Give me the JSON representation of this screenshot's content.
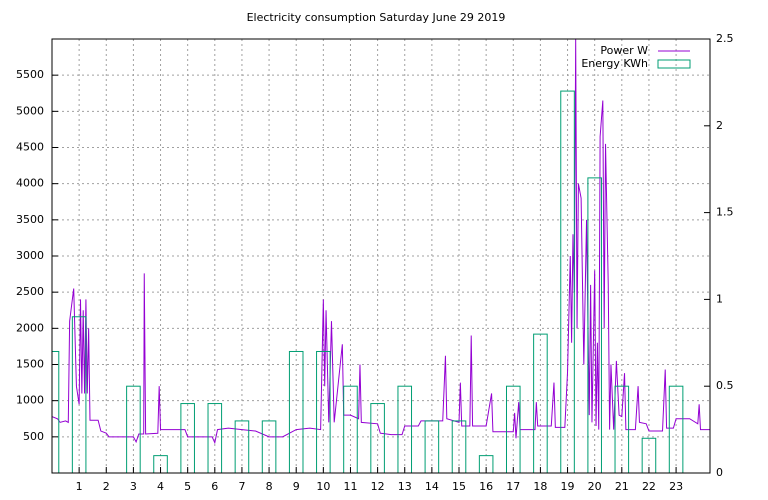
{
  "chart_data": {
    "type": "line",
    "title": "Electricity consumption Saturday June 29 2019",
    "xlim": [
      0,
      24.25
    ],
    "xticks": [
      1,
      2,
      3,
      4,
      5,
      6,
      7,
      8,
      9,
      10,
      11,
      12,
      13,
      14,
      15,
      16,
      17,
      18,
      19,
      20,
      21,
      22,
      23
    ],
    "ylim": [
      0,
      6000
    ],
    "yticks": [
      500,
      1000,
      1500,
      2000,
      2500,
      3000,
      3500,
      4000,
      4500,
      5000,
      5500
    ],
    "y2lim": [
      0,
      2.5
    ],
    "y2ticks": [
      0,
      0.5,
      1,
      1.5,
      2,
      2.5
    ],
    "grid": true,
    "legend": "top-right",
    "series": [
      {
        "name": "Power W",
        "color": "#9400d3",
        "x": [
          0,
          0.2,
          0.3,
          0.5,
          0.6,
          0.65,
          0.8,
          0.9,
          1.0,
          1.05,
          1.1,
          1.15,
          1.2,
          1.25,
          1.3,
          1.35,
          1.4,
          1.7,
          1.8,
          2.0,
          2.1,
          3.0,
          3.1,
          3.2,
          3.38,
          3.4,
          3.45,
          3.9,
          3.95,
          4.0,
          4.9,
          5.0,
          5.9,
          6.0,
          6.1,
          6.5,
          7.0,
          7.5,
          8.0,
          8.5,
          9.0,
          9.5,
          9.9,
          10.0,
          10.05,
          10.1,
          10.2,
          10.3,
          10.4,
          10.7,
          10.75,
          11.0,
          11.3,
          11.35,
          11.4,
          12.0,
          12.1,
          12.5,
          12.9,
          13.0,
          13.5,
          13.6,
          14.4,
          14.5,
          14.55,
          15.0,
          15.05,
          15.1,
          15.4,
          15.45,
          15.5,
          16.0,
          16.2,
          16.25,
          17.0,
          17.05,
          17.1,
          17.2,
          17.25,
          17.8,
          17.85,
          17.9,
          18.4,
          18.5,
          18.55,
          18.9,
          19.0,
          19.1,
          19.15,
          19.2,
          19.25,
          19.3,
          19.35,
          19.4,
          19.5,
          19.6,
          19.7,
          19.8,
          19.85,
          19.9,
          20.0,
          20.05,
          20.1,
          20.15,
          20.2,
          20.3,
          20.35,
          20.4,
          20.5,
          20.55,
          20.6,
          20.7,
          20.8,
          20.9,
          21.0,
          21.1,
          21.15,
          21.5,
          21.6,
          21.65,
          21.9,
          22.0,
          22.5,
          22.6,
          22.65,
          22.9,
          23.0,
          23.5,
          23.8,
          23.85,
          23.9,
          24.25
        ],
        "values": [
          780,
          750,
          700,
          720,
          700,
          2100,
          2550,
          1200,
          950,
          2400,
          1100,
          2250,
          1100,
          2400,
          1100,
          2000,
          730,
          730,
          580,
          550,
          500,
          500,
          430,
          540,
          540,
          2760,
          540,
          550,
          1200,
          600,
          600,
          500,
          500,
          420,
          600,
          620,
          600,
          580,
          500,
          500,
          600,
          620,
          600,
          2400,
          1200,
          2250,
          700,
          2100,
          700,
          1780,
          800,
          800,
          750,
          1500,
          700,
          680,
          550,
          530,
          530,
          650,
          650,
          720,
          720,
          1620,
          750,
          700,
          1250,
          650,
          650,
          1900,
          650,
          650,
          1100,
          570,
          570,
          830,
          480,
          980,
          600,
          600,
          980,
          650,
          650,
          1250,
          630,
          630,
          1400,
          3000,
          1800,
          3300,
          2500,
          6000,
          2000,
          4000,
          3800,
          1500,
          3500,
          800,
          2600,
          700,
          2800,
          650,
          1800,
          600,
          4650,
          5150,
          2000,
          4550,
          2600,
          600,
          1500,
          600,
          1550,
          800,
          780,
          1380,
          600,
          600,
          1200,
          700,
          680,
          580,
          580,
          1430,
          620,
          620,
          750,
          750,
          680,
          950,
          600,
          600
        ]
      },
      {
        "name": "Energy KWh",
        "color": "#009e73",
        "axis": "y2",
        "x": [
          0,
          1,
          2,
          3,
          4,
          5,
          6,
          7,
          8,
          9,
          10,
          11,
          12,
          13,
          14,
          15,
          16,
          17,
          18,
          19,
          20,
          21,
          22,
          23
        ],
        "values": [
          0.7,
          0.9,
          0,
          0.5,
          0.1,
          0.4,
          0.4,
          0.3,
          0.3,
          0.7,
          0.7,
          0.5,
          0.4,
          0.5,
          0.3,
          0.3,
          0.1,
          0.5,
          0.8,
          2.2,
          1.7,
          0.5,
          0.2,
          0.5
        ]
      }
    ]
  }
}
